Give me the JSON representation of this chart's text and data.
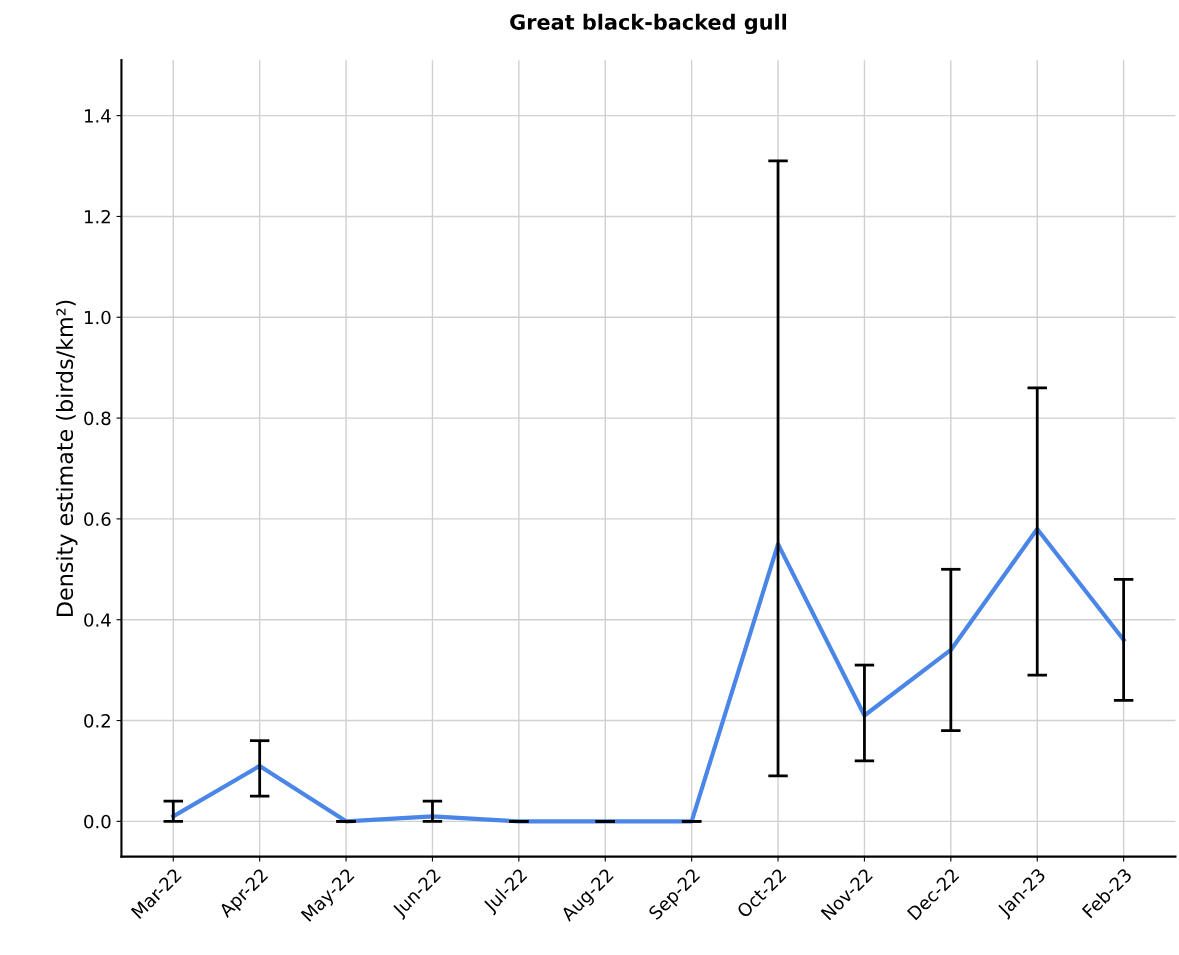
{
  "chart_data": {
    "type": "line",
    "title": "Great black-backed gull",
    "ylabel": "Density estimate (birds/km²)",
    "categories": [
      "Mar-22",
      "Apr-22",
      "May-22",
      "Jun-22",
      "Jul-22",
      "Aug-22",
      "Sep-22",
      "Oct-22",
      "Nov-22",
      "Dec-22",
      "Jan-23",
      "Feb-23"
    ],
    "series": [
      {
        "color": "#4a86e8",
        "values": [
          0.01,
          0.11,
          0.0,
          0.01,
          0.0,
          0.0,
          0.0,
          0.55,
          0.21,
          0.34,
          0.58,
          0.36
        ],
        "errors": [
          [
            0.0,
            0.04
          ],
          [
            0.05,
            0.16
          ],
          [
            0.0,
            0.0
          ],
          [
            0.0,
            0.04
          ],
          [
            0.0,
            0.0
          ],
          [
            0.0,
            0.0
          ],
          [
            0.0,
            0.0
          ],
          [
            0.09,
            1.31
          ],
          [
            0.12,
            0.31
          ],
          [
            0.18,
            0.5
          ],
          [
            0.29,
            0.86
          ],
          [
            0.24,
            0.48
          ]
        ]
      }
    ],
    "ylim": [
      -0.07,
      1.51
    ],
    "yticks": [
      {
        "value": 0,
        "label": "0.0"
      },
      0.2,
      0.4,
      0.6,
      0.8,
      {
        "value": 1,
        "label": "1.0"
      },
      1.2,
      1.4
    ],
    "grid": true,
    "marker": "none",
    "line_style": "solid"
  }
}
